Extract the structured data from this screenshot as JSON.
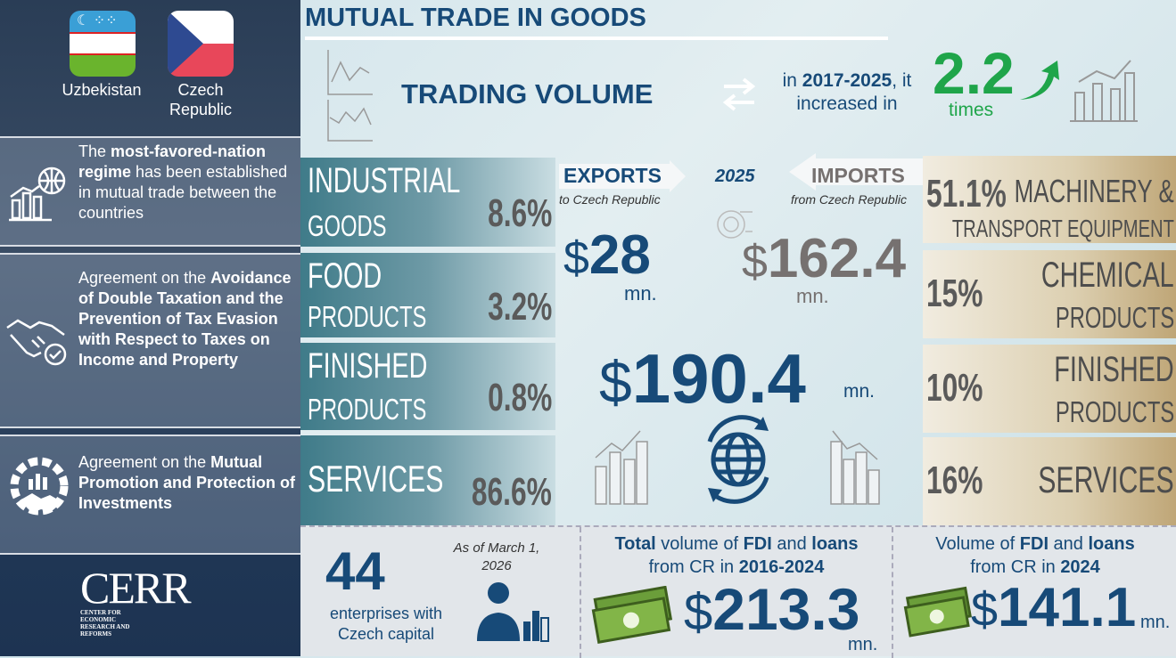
{
  "flags": [
    {
      "country": "Uzbekistan"
    },
    {
      "country": "Czech Republic",
      "lines": [
        "Czech",
        "Republic"
      ]
    }
  ],
  "agreements": [
    {
      "icon": "globe-chart-icon",
      "parts": [
        {
          "t": "The ",
          "b": false
        },
        {
          "t": "most-favored-nation regime",
          "b": true
        },
        {
          "t": " has been established in mutual trade between the countries",
          "b": false
        }
      ]
    },
    {
      "icon": "handshake-check-icon",
      "parts": [
        {
          "t": "Agreement on the ",
          "b": false
        },
        {
          "t": "Avoidance of Double Taxation and the Prevention of Tax Evasion with Respect to Taxes on Income and Property",
          "b": true
        }
      ]
    },
    {
      "icon": "gear-handshake-icon",
      "parts": [
        {
          "t": "Agreement on the ",
          "b": false
        },
        {
          "t": "Mutual Promotion and Protection of Investments",
          "b": true
        }
      ]
    }
  ],
  "logo": {
    "name": "CERR",
    "subtitle": "CENTER FOR ECONOMIC RESEARCH AND REFORMS"
  },
  "title": "MUTUAL TRADE IN GOODS",
  "trading": {
    "label": "TRADING VOLUME",
    "text_pre": "in ",
    "years": "2017-2025",
    "text_mid": ", it increased in",
    "factor": "2.2",
    "factor_unit": "times"
  },
  "exports": {
    "label": "EXPORTS",
    "sub": "to Czech Republic",
    "value": "28",
    "currency": "$",
    "unit": "mn."
  },
  "year": "2025",
  "imports": {
    "label": "IMPORTS",
    "sub": "from Czech Republic",
    "value": "162.4",
    "currency": "$",
    "unit": "mn."
  },
  "total": {
    "currency": "$",
    "value": "190.4",
    "unit": "mn."
  },
  "export_categories": [
    {
      "l1": "INDUSTRIAL",
      "l2": "GOODS",
      "pct": "8.6%"
    },
    {
      "l1": "FOOD",
      "l2": "PRODUCTS",
      "pct": "3.2%"
    },
    {
      "l1": "FINISHED",
      "l2": "PRODUCTS",
      "pct": "0.8%"
    },
    {
      "l1": "SERVICES",
      "l2": "",
      "pct": "86.6%"
    }
  ],
  "import_categories": [
    {
      "l1": "MACHINERY &",
      "l2": "TRANSPORT EQUIPMENT",
      "pct": "51.1%"
    },
    {
      "l1": "CHEMICAL",
      "l2": "PRODUCTS",
      "pct": "15%"
    },
    {
      "l1": "FINISHED",
      "l2": "PRODUCTS",
      "pct": "10%"
    },
    {
      "l1": "SERVICES",
      "l2": "",
      "pct": "16%"
    }
  ],
  "enterprises": {
    "count": "44",
    "l1": "enterprises with",
    "l2": "Czech capital",
    "date1": "As of March 1,",
    "date2": "2026"
  },
  "fdi_total": {
    "h": [
      {
        "t": "Total",
        "b": true
      },
      {
        "t": " volume of ",
        "b": false
      },
      {
        "t": "FDI",
        "b": true
      },
      {
        "t": " and ",
        "b": false
      },
      {
        "t": "loans",
        "b": true
      }
    ],
    "h2": [
      {
        "t": "from CR in ",
        "b": false
      },
      {
        "t": "2016-2024",
        "b": true
      }
    ],
    "currency": "$",
    "value": "213.3",
    "unit": "mn."
  },
  "fdi_2024": {
    "h": [
      {
        "t": "Volume of ",
        "b": false
      },
      {
        "t": "FDI",
        "b": true
      },
      {
        "t": " and ",
        "b": false
      },
      {
        "t": "loans",
        "b": true
      }
    ],
    "h2": [
      {
        "t": "from CR in ",
        "b": false
      },
      {
        "t": "2024",
        "b": true
      }
    ],
    "currency": "$",
    "value": "141.1",
    "unit": "mn."
  },
  "colors": {
    "navy": "#174a78",
    "green": "#1fa54a",
    "grey": "#767170",
    "teal": "#3f7b89",
    "tan": "#bfa677"
  }
}
